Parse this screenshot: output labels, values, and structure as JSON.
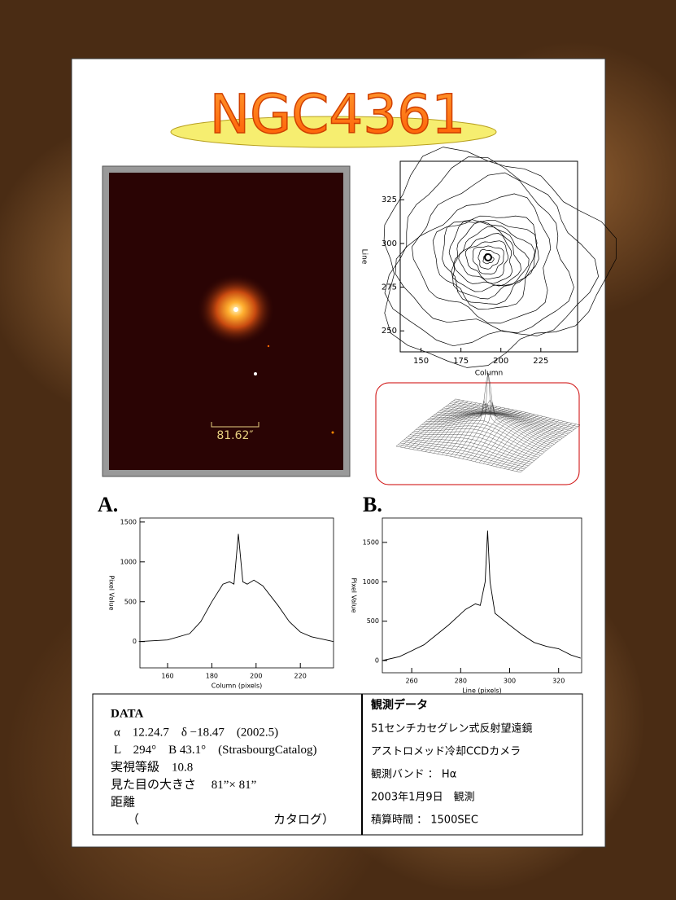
{
  "title": "NGC4361",
  "image": {
    "scale_label": "81.62″"
  },
  "contour": {
    "xlabel": "Column",
    "ylabel": "Line",
    "xlim": [
      137,
      248
    ],
    "ylim": [
      238,
      347
    ],
    "xticks": [
      150,
      175,
      200,
      225
    ],
    "yticks": [
      250,
      275,
      300,
      325
    ]
  },
  "plots": [
    {
      "label": "A.",
      "xlabel": "Column (pixels)",
      "ylabel": "Pixel Value",
      "xlim": [
        147.5,
        235
      ],
      "ylim": [
        -330,
        1550
      ],
      "xticks": [
        160,
        180,
        200,
        220
      ],
      "yticks": [
        0,
        500,
        1000,
        1500
      ],
      "x": [
        147,
        160,
        170,
        175,
        180,
        185,
        188,
        190,
        192,
        194,
        196,
        199,
        203,
        210,
        215,
        220,
        225,
        235
      ],
      "values": [
        0,
        20,
        100,
        250,
        500,
        720,
        750,
        720,
        1350,
        750,
        720,
        770,
        700,
        450,
        250,
        120,
        60,
        0
      ]
    },
    {
      "label": "B.",
      "xlabel": "Line (pixels)",
      "ylabel": "Pixel Value",
      "xlim": [
        248,
        329.4
      ],
      "ylim": [
        -155,
        1810
      ],
      "xticks": [
        260,
        280,
        300,
        320
      ],
      "yticks": [
        0,
        500,
        1000,
        1500
      ],
      "x": [
        248,
        255,
        265,
        275,
        282,
        286,
        288,
        290,
        291,
        292,
        294,
        300,
        305,
        310,
        315,
        320,
        325,
        329
      ],
      "values": [
        0,
        50,
        200,
        450,
        650,
        720,
        700,
        1000,
        1650,
        1000,
        600,
        450,
        330,
        230,
        180,
        150,
        70,
        30
      ]
    }
  ],
  "data_left": {
    "title": "DATA",
    "lines": [
      "α　12.24.7　δ −18.47　(2002.5)",
      "L　294°　B 43.1°　(StrasbourgCatalog)",
      "実視等級　10.8",
      "見た目の大きさ　 81”× 81”",
      "距離",
      "（　　　　　　　　　　　カタログ）"
    ]
  },
  "data_right": {
    "title": "観測データ",
    "lines": [
      "51センチカセグレン式反射望遠鏡",
      "アストロメッド冷却CCDカメラ",
      "観測バンド ： Hα",
      "2003年1月9日　観測",
      "積算時間 ： 1500SEC"
    ]
  }
}
